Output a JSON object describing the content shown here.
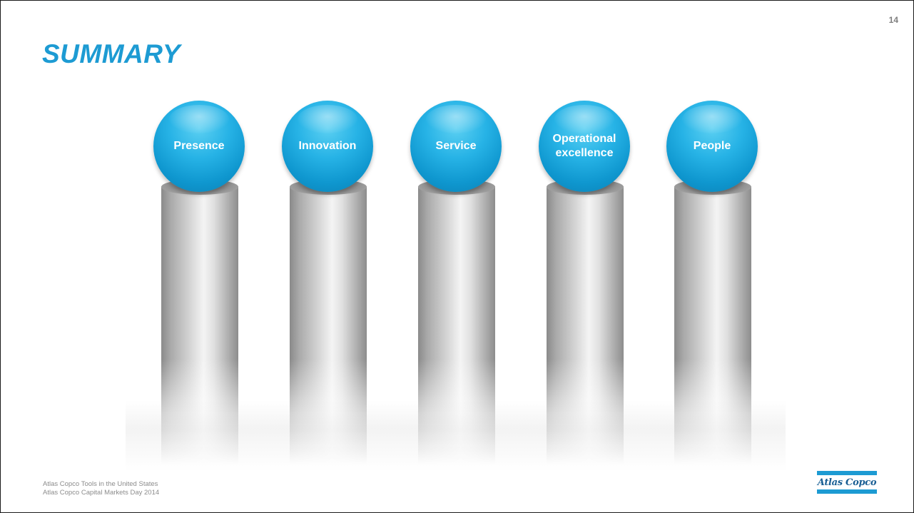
{
  "slide": {
    "page_number": "14",
    "title": "SUMMARY"
  },
  "pillars": [
    {
      "label": "Presence"
    },
    {
      "label": "Innovation"
    },
    {
      "label": "Service"
    },
    {
      "label": "Operational\nexcellence"
    },
    {
      "label": "People"
    }
  ],
  "footer": {
    "line1": "Atlas Copco Tools in the United States",
    "line2": "Atlas Copco Capital Markets Day 2014"
  },
  "logo": {
    "text": "Atlas Copco"
  },
  "colors": {
    "accent": "#1d9bd3",
    "sphere": "#27b3e6",
    "logo_text": "#1a5f94"
  }
}
